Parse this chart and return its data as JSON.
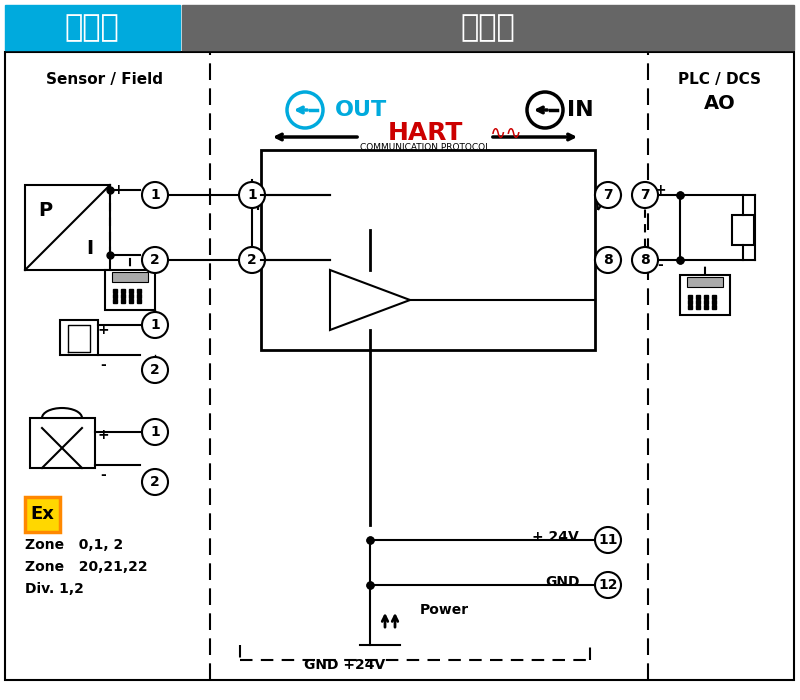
{
  "title_danger": "危险区",
  "title_safe": "安全区",
  "header_bg_danger": "#00AADD",
  "header_bg_safe": "#666666",
  "header_text_color": "#FFFFFF",
  "main_bg": "#FFFFFF",
  "border_color": "#000000",
  "label_sensor": "Sensor / Field",
  "label_plc": "PLC / DCS",
  "label_ao": "AO",
  "label_out": "OUT",
  "label_in": "IN",
  "label_hart": "HART",
  "label_hart_sub": "COMMUNICATION PROTOCOL",
  "label_24v": "+ 24V",
  "label_gnd": "GND",
  "label_power": "Power",
  "label_gnd_24v": "GND +24V",
  "label_zone1": "Zone   0,1, 2",
  "label_zone2": "Zone   20,21,22",
  "label_div": "Div. 1,2",
  "color_out_arrow": "#00AADD",
  "color_hart": "#CC0000",
  "color_ex_bg": "#FFD700",
  "color_ex_border": "#FF8800",
  "line_color": "#000000",
  "dashed_color": "#000000"
}
